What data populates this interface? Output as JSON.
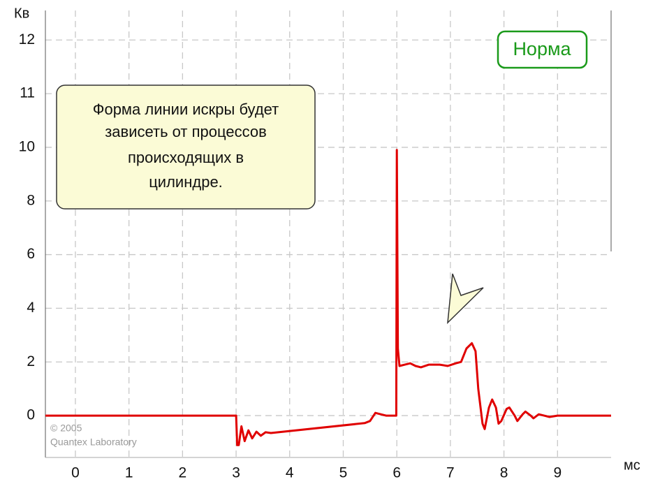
{
  "chart_data": {
    "type": "line",
    "y_label": "Кв",
    "x_label": "мс",
    "badge": "Норма",
    "note": [
      "Форма линии искры будет",
      "зависеть от процессов",
      "происходящих в",
      "цилиндре."
    ],
    "credits": [
      "© 2005",
      "Quantex Laboratory"
    ],
    "xlim": [
      -0.56,
      10.0
    ],
    "xticks": [
      0,
      1,
      2,
      3,
      4,
      5,
      6,
      7,
      8,
      9
    ],
    "ylim": [
      -1.56,
      12.55
    ],
    "yticks": [
      0,
      2,
      4,
      6,
      8,
      10,
      11,
      12
    ],
    "grid": true,
    "series": [
      {
        "color": "#e00000",
        "x": [
          -0.56,
          3.0,
          3.02,
          3.05,
          3.1,
          3.16,
          3.23,
          3.3,
          3.38,
          3.46,
          3.55,
          3.65,
          5.4,
          5.5,
          5.6,
          5.7,
          5.8,
          5.99,
          6.0,
          6.02,
          6.05,
          6.15,
          6.25,
          6.35,
          6.45,
          6.6,
          6.8,
          6.95,
          7.1,
          7.2,
          7.3,
          7.4,
          7.47,
          7.52,
          7.6,
          7.64,
          7.72,
          7.78,
          7.85,
          7.9,
          7.95,
          8.05,
          8.1,
          8.2,
          8.25,
          8.35,
          8.4,
          8.5,
          8.55,
          8.65,
          8.75,
          8.85,
          9.0,
          10.0
        ],
        "values": [
          0,
          0,
          -1.1,
          -1.1,
          -0.4,
          -0.95,
          -0.55,
          -0.85,
          -0.6,
          -0.75,
          -0.62,
          -0.65,
          -0.28,
          -0.2,
          0.1,
          0.05,
          0,
          0,
          9.9,
          2.5,
          1.85,
          1.9,
          1.95,
          1.85,
          1.8,
          1.9,
          1.9,
          1.85,
          1.95,
          2.0,
          2.5,
          2.7,
          2.4,
          1.0,
          -0.3,
          -0.5,
          0.3,
          0.6,
          0.3,
          -0.3,
          -0.2,
          0.25,
          0.3,
          0,
          -0.2,
          0.05,
          0.15,
          0,
          -0.1,
          0.05,
          0,
          -0.05,
          0,
          0
        ]
      }
    ]
  }
}
